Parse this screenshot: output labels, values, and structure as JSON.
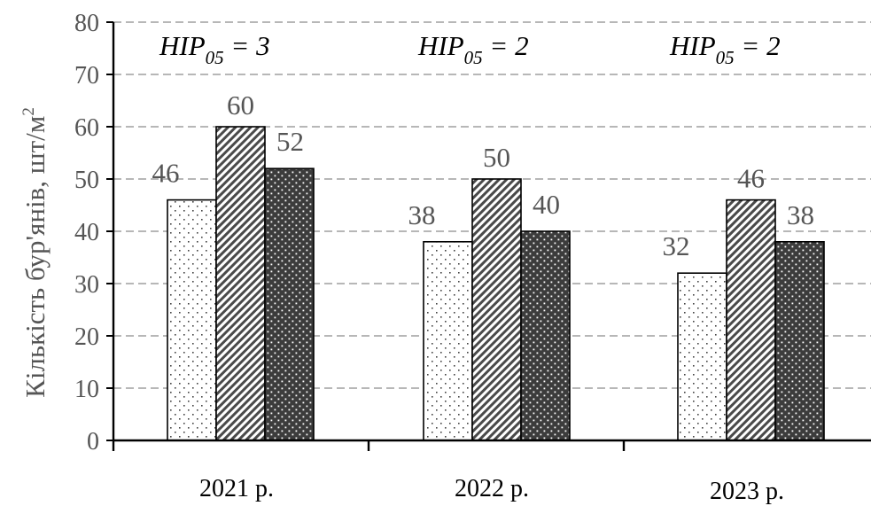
{
  "chart_data": {
    "type": "bar",
    "title": "",
    "xlabel": "",
    "ylabel": "Кількість бур'янів, шт/м²",
    "ylabel_parts": {
      "text": "Кількість бур'янів, шт/м",
      "sup": "2"
    },
    "ylim": [
      0,
      80
    ],
    "yticks": [
      0,
      10,
      20,
      30,
      40,
      50,
      60,
      70,
      80
    ],
    "grid": true,
    "legend": "none",
    "categories": [
      "2021 р.",
      "2022 р.",
      "2023 р."
    ],
    "series": [
      {
        "pattern": "dotted-white",
        "fill": "#ffffff",
        "values": [
          46,
          38,
          32
        ]
      },
      {
        "pattern": "diagonal-hatch",
        "fill": "#4a4a4a",
        "values": [
          60,
          50,
          46
        ]
      },
      {
        "pattern": "dark-dotted",
        "fill": "#3c3c3c",
        "values": [
          52,
          40,
          38
        ]
      }
    ],
    "annotations": [
      {
        "main": "HIP",
        "sub": "05",
        "rest": " = 3"
      },
      {
        "main": "HIP",
        "sub": "05",
        "rest": " = 2"
      },
      {
        "main": "HIP",
        "sub": "05",
        "rest": " = 2"
      }
    ]
  }
}
